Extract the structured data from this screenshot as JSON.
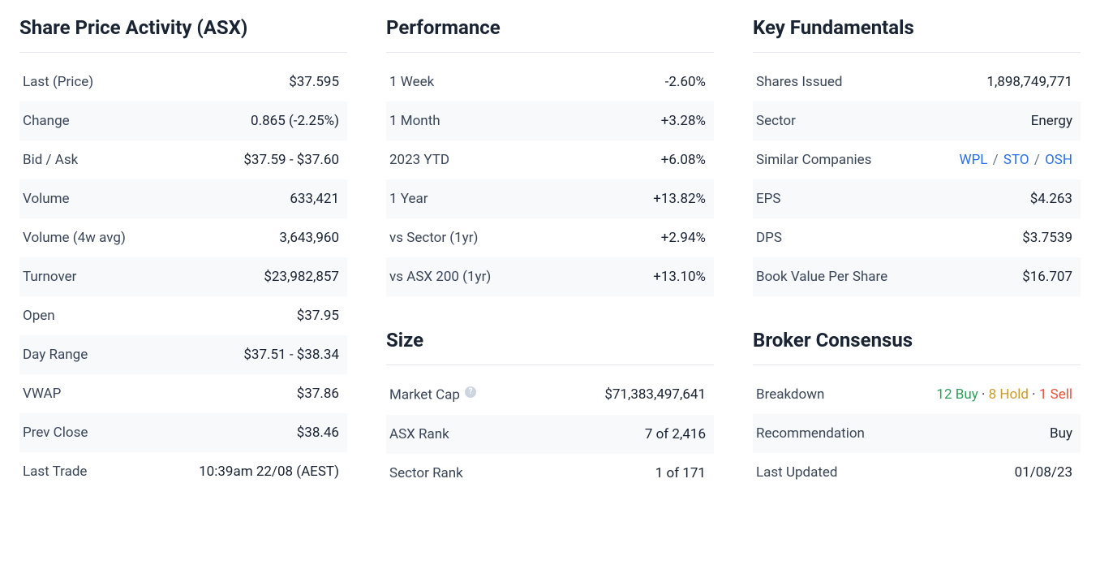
{
  "colors": {
    "background": "#ffffff",
    "text": "#1a2332",
    "label": "#3a4556",
    "border": "#e4e8ee",
    "altRow": "#f7f9fb",
    "negative": "#e5533c",
    "positive": "#2f9e5b",
    "link": "#2970e6",
    "hold": "#c99a2e",
    "helpBg": "#cdd4de"
  },
  "typography": {
    "titleFontSize": 24,
    "rowFontSize": 17,
    "titleWeight": 700
  },
  "sharePrice": {
    "title": "Share Price Activity (ASX)",
    "rows": {
      "last": {
        "label": "Last (Price)",
        "value": "$37.595"
      },
      "change": {
        "label": "Change",
        "value": "0.865 (-2.25%)",
        "tone": "neg"
      },
      "bidask": {
        "label": "Bid / Ask",
        "value": "$37.59 - $37.60"
      },
      "volume": {
        "label": "Volume",
        "value": "633,421"
      },
      "vol4w": {
        "label": "Volume (4w avg)",
        "value": "3,643,960"
      },
      "turnover": {
        "label": "Turnover",
        "value": "$23,982,857"
      },
      "open": {
        "label": "Open",
        "value": "$37.95"
      },
      "dayrange": {
        "label": "Day Range",
        "value": "$37.51 - $38.34"
      },
      "vwap": {
        "label": "VWAP",
        "value": "$37.86"
      },
      "prevclose": {
        "label": "Prev Close",
        "value": "$38.46"
      },
      "lasttrade": {
        "label": "Last Trade",
        "value": "10:39am 22/08 (AEST)"
      }
    }
  },
  "performance": {
    "title": "Performance",
    "rows": {
      "w1": {
        "label": "1 Week",
        "value": "-2.60%",
        "tone": "neg"
      },
      "m1": {
        "label": "1 Month",
        "value": "+3.28%",
        "tone": "pos"
      },
      "ytd": {
        "label": "2023 YTD",
        "value": "+6.08%",
        "tone": "pos"
      },
      "y1": {
        "label": "1 Year",
        "value": "+13.82%",
        "tone": "pos"
      },
      "vsec": {
        "label": "vs Sector (1yr)",
        "value": "+2.94%",
        "tone": "pos"
      },
      "vasx": {
        "label": "vs ASX 200 (1yr)",
        "value": "+13.10%",
        "tone": "pos"
      }
    }
  },
  "size": {
    "title": "Size",
    "rows": {
      "mcap": {
        "label": "Market Cap",
        "value": "$71,383,497,641",
        "help": true
      },
      "asxr": {
        "label": "ASX Rank",
        "value": "7 of 2,416"
      },
      "secr": {
        "label": "Sector Rank",
        "value": "1 of 171"
      }
    }
  },
  "fundamentals": {
    "title": "Key Fundamentals",
    "rows": {
      "shares": {
        "label": "Shares Issued",
        "value": "1,898,749,771"
      },
      "sector": {
        "label": "Sector",
        "value": "Energy"
      },
      "similar": {
        "label": "Similar Companies",
        "links": [
          "WPL",
          "STO",
          "OSH"
        ],
        "sep": " / "
      },
      "eps": {
        "label": "EPS",
        "value": "$4.263"
      },
      "dps": {
        "label": "DPS",
        "value": "$3.7539"
      },
      "bvps": {
        "label": "Book Value Per Share",
        "value": "$16.707"
      }
    }
  },
  "broker": {
    "title": "Broker Consensus",
    "breakdown": {
      "label": "Breakdown",
      "buy": {
        "count": "12",
        "word": "Buy"
      },
      "hold": {
        "count": "8",
        "word": "Hold"
      },
      "sell": {
        "count": "1",
        "word": "Sell"
      },
      "dot": " · "
    },
    "recommendation": {
      "label": "Recommendation",
      "value": "Buy",
      "tone": "pos"
    },
    "updated": {
      "label": "Last Updated",
      "value": "01/08/23",
      "tone": "link"
    }
  }
}
